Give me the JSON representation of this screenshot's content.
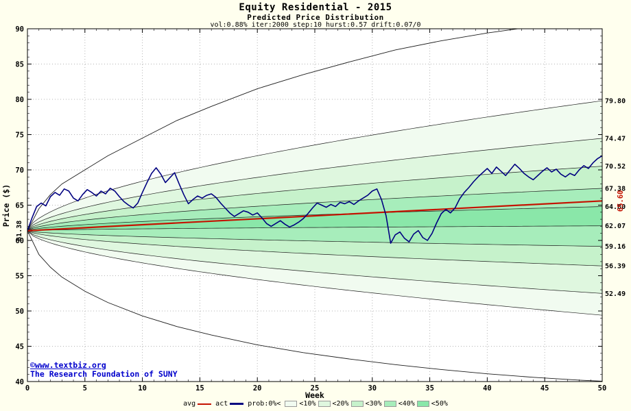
{
  "chart_data": {
    "type": "line",
    "title": "Equity Residential - 2015",
    "subtitle": "Predicted Price Distribution",
    "params": "vol:0.88% iter:2000 step:10 hurst:0.57 drift:0.07/0",
    "xlabel": "Week",
    "ylabel": "Price ($)",
    "xlim": [
      0,
      50
    ],
    "ylim": [
      40,
      90
    ],
    "x_ticks": [
      0,
      5,
      10,
      15,
      20,
      25,
      30,
      35,
      40,
      45,
      50
    ],
    "y_ticks": [
      40,
      45,
      50,
      55,
      60,
      65,
      70,
      75,
      80,
      85,
      90
    ],
    "grid": true,
    "legend_position": "bottom",
    "start_price": 61.38,
    "spread_exponent": 0.6,
    "avg": {
      "name": "avg",
      "color": "#c41200",
      "start": 61.38,
      "end": 65.6
    },
    "act": {
      "name": "act",
      "color": "#000080",
      "points": [
        [
          0,
          61.38
        ],
        [
          0.4,
          63.2
        ],
        [
          0.8,
          64.8
        ],
        [
          1.2,
          65.3
        ],
        [
          1.6,
          64.9
        ],
        [
          2,
          66.2
        ],
        [
          2.4,
          66.8
        ],
        [
          2.8,
          66.4
        ],
        [
          3.2,
          67.3
        ],
        [
          3.6,
          67
        ],
        [
          4,
          66
        ],
        [
          4.4,
          65.6
        ],
        [
          4.8,
          66.5
        ],
        [
          5.2,
          67.2
        ],
        [
          5.6,
          66.8
        ],
        [
          6,
          66.3
        ],
        [
          6.4,
          67
        ],
        [
          6.8,
          66.6
        ],
        [
          7.2,
          67.4
        ],
        [
          7.6,
          67
        ],
        [
          8,
          66.2
        ],
        [
          8.4,
          65.5
        ],
        [
          8.8,
          65
        ],
        [
          9.2,
          64.6
        ],
        [
          9.6,
          65.3
        ],
        [
          10,
          66.8
        ],
        [
          10.4,
          68.2
        ],
        [
          10.8,
          69.5
        ],
        [
          11.2,
          70.3
        ],
        [
          11.6,
          69.4
        ],
        [
          12,
          68.2
        ],
        [
          12.4,
          68.9
        ],
        [
          12.8,
          69.6
        ],
        [
          13.2,
          68
        ],
        [
          13.6,
          66.5
        ],
        [
          14,
          65.2
        ],
        [
          14.4,
          65.8
        ],
        [
          14.8,
          66.3
        ],
        [
          15.2,
          66
        ],
        [
          15.6,
          66.4
        ],
        [
          16,
          66.6
        ],
        [
          16.4,
          66.1
        ],
        [
          16.8,
          65.3
        ],
        [
          17.2,
          64.6
        ],
        [
          17.6,
          63.9
        ],
        [
          18,
          63.4
        ],
        [
          18.4,
          63.8
        ],
        [
          18.8,
          64.2
        ],
        [
          19.2,
          64
        ],
        [
          19.6,
          63.6
        ],
        [
          20,
          63.9
        ],
        [
          20.4,
          63.2
        ],
        [
          20.8,
          62.4
        ],
        [
          21.2,
          62
        ],
        [
          21.6,
          62.4
        ],
        [
          22,
          62.8
        ],
        [
          22.4,
          62.3
        ],
        [
          22.8,
          61.9
        ],
        [
          23.2,
          62.2
        ],
        [
          23.6,
          62.6
        ],
        [
          24,
          63.1
        ],
        [
          24.4,
          63.8
        ],
        [
          24.8,
          64.6
        ],
        [
          25.2,
          65.3
        ],
        [
          25.6,
          65
        ],
        [
          26,
          64.7
        ],
        [
          26.4,
          65.1
        ],
        [
          26.8,
          64.8
        ],
        [
          27.2,
          65.4
        ],
        [
          27.6,
          65.2
        ],
        [
          28,
          65.5
        ],
        [
          28.4,
          65.1
        ],
        [
          28.8,
          65.6
        ],
        [
          29.2,
          66
        ],
        [
          29.6,
          66.4
        ],
        [
          30,
          67
        ],
        [
          30.4,
          67.3
        ],
        [
          30.8,
          65.8
        ],
        [
          31.2,
          63.5
        ],
        [
          31.6,
          59.6
        ],
        [
          32,
          60.8
        ],
        [
          32.4,
          61.2
        ],
        [
          32.8,
          60.3
        ],
        [
          33.2,
          59.8
        ],
        [
          33.6,
          60.9
        ],
        [
          34,
          61.4
        ],
        [
          34.4,
          60.4
        ],
        [
          34.8,
          60
        ],
        [
          35.2,
          61
        ],
        [
          35.6,
          62.5
        ],
        [
          36,
          63.8
        ],
        [
          36.4,
          64.4
        ],
        [
          36.8,
          63.9
        ],
        [
          37.2,
          64.6
        ],
        [
          37.6,
          65.9
        ],
        [
          38,
          66.8
        ],
        [
          38.4,
          67.5
        ],
        [
          38.8,
          68.3
        ],
        [
          39.2,
          69
        ],
        [
          39.6,
          69.6
        ],
        [
          40,
          70.2
        ],
        [
          40.4,
          69.5
        ],
        [
          40.8,
          70.4
        ],
        [
          41.2,
          69.8
        ],
        [
          41.6,
          69.2
        ],
        [
          42,
          70
        ],
        [
          42.4,
          70.8
        ],
        [
          42.8,
          70.2
        ],
        [
          43.2,
          69.5
        ],
        [
          43.6,
          69
        ],
        [
          44,
          68.6
        ],
        [
          44.4,
          69.2
        ],
        [
          44.8,
          69.8
        ],
        [
          45.2,
          70.3
        ],
        [
          45.6,
          69.7
        ],
        [
          46,
          70.1
        ],
        [
          46.4,
          69.4
        ],
        [
          46.8,
          69
        ],
        [
          47.2,
          69.5
        ],
        [
          47.6,
          69.2
        ],
        [
          48,
          70
        ],
        [
          48.4,
          70.6
        ],
        [
          48.8,
          70.2
        ],
        [
          49.2,
          71
        ],
        [
          49.6,
          71.6
        ],
        [
          50,
          72
        ]
      ]
    },
    "bands": [
      {
        "label": "<10%",
        "color": "#f1fbf0",
        "upper_end": 79.8,
        "lower_end": 49.4
      },
      {
        "label": "<20%",
        "color": "#dff7df",
        "upper_end": 74.47,
        "lower_end": 52.49
      },
      {
        "label": "<30%",
        "color": "#c6f2cb",
        "upper_end": 70.52,
        "lower_end": 56.39
      },
      {
        "label": "<40%",
        "color": "#a7edbb",
        "upper_end": 67.38,
        "lower_end": 59.16
      },
      {
        "label": "<50%",
        "color": "#8ae7a9",
        "upper_end": 64.8,
        "lower_end": 62.07
      }
    ],
    "outer": {
      "color": "#1b1b1b",
      "upper": [
        [
          0,
          61.38
        ],
        [
          1,
          64.5
        ],
        [
          2,
          66.5
        ],
        [
          3,
          68
        ],
        [
          5,
          70
        ],
        [
          7,
          72
        ],
        [
          10,
          74.5
        ],
        [
          13,
          77
        ],
        [
          16,
          79
        ],
        [
          20,
          81.5
        ],
        [
          24,
          83.5
        ],
        [
          28,
          85.3
        ],
        [
          32,
          87
        ],
        [
          36,
          88.3
        ],
        [
          40,
          89.4
        ],
        [
          44,
          90.3
        ],
        [
          48,
          91
        ],
        [
          50,
          91.4
        ]
      ],
      "lower": [
        [
          0,
          61.38
        ],
        [
          1,
          58
        ],
        [
          2,
          56.2
        ],
        [
          3,
          54.8
        ],
        [
          5,
          52.8
        ],
        [
          7,
          51.2
        ],
        [
          10,
          49.3
        ],
        [
          13,
          47.8
        ],
        [
          16,
          46.6
        ],
        [
          20,
          45.2
        ],
        [
          24,
          44.1
        ],
        [
          28,
          43.2
        ],
        [
          32,
          42.4
        ],
        [
          36,
          41.7
        ],
        [
          40,
          41.1
        ],
        [
          44,
          40.6
        ],
        [
          48,
          40.2
        ],
        [
          50,
          40.05
        ]
      ]
    }
  },
  "annotations": {
    "start_label": "61.38",
    "start_value": 61.38,
    "avg_end_label": "65.60",
    "avg_end_value": 65.6,
    "right_labels": [
      {
        "text": "79.80",
        "value": 79.8
      },
      {
        "text": "74.47",
        "value": 74.47
      },
      {
        "text": "70.52",
        "value": 70.52
      },
      {
        "text": "67.38",
        "value": 67.38
      },
      {
        "text": "64.80",
        "value": 64.8
      },
      {
        "text": "62.07",
        "value": 62.07
      },
      {
        "text": "59.16",
        "value": 59.16
      },
      {
        "text": "56.39",
        "value": 56.39
      },
      {
        "text": "52.49",
        "value": 52.49
      }
    ]
  },
  "legend": {
    "avg_label": "avg",
    "act_label": "act",
    "prob_label": "prob:0%<"
  },
  "footer": {
    "copyright": "©www.textbiz.org",
    "org": "The Research Foundation of SUNY"
  },
  "colors": {
    "page_bg": "#ffffee",
    "plot_bg": "#ffffff",
    "grid": "#b3b3b3",
    "axis": "#000000",
    "copyright_blue": "#0000cc"
  }
}
